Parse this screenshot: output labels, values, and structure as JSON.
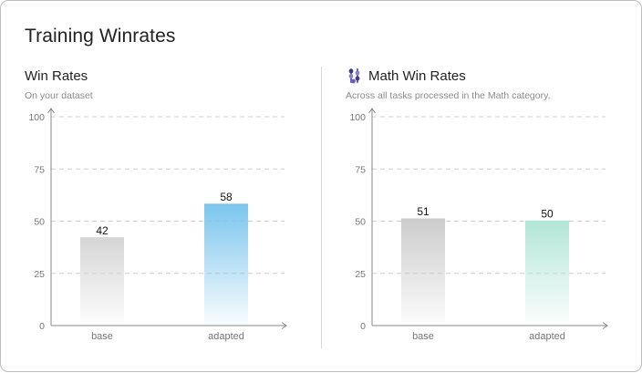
{
  "page": {
    "title": "Training Winrates"
  },
  "chart_data": [
    {
      "type": "bar",
      "title": "Win Rates",
      "subtitle": "On your dataset",
      "categories": [
        "base",
        "adapted"
      ],
      "values": [
        42,
        58
      ],
      "value_labels": [
        "42",
        "58"
      ],
      "ylim": [
        0,
        100
      ],
      "yticks": [
        "0",
        "25",
        "50",
        "75",
        "100"
      ],
      "grid": true,
      "bar_colors": [
        "#d6d6d6",
        "#7cc6ee"
      ]
    },
    {
      "type": "bar",
      "title": "Math Win Rates",
      "title_icon": "abacus-icon",
      "subtitle": "Across all tasks processed in the Math category.",
      "categories": [
        "base",
        "adapted"
      ],
      "values": [
        51,
        50
      ],
      "value_labels": [
        "51",
        "50"
      ],
      "ylim": [
        0,
        100
      ],
      "yticks": [
        "0",
        "25",
        "50",
        "75",
        "100"
      ],
      "grid": true,
      "bar_colors": [
        "#cccccc",
        "#b3e6d8"
      ]
    }
  ]
}
